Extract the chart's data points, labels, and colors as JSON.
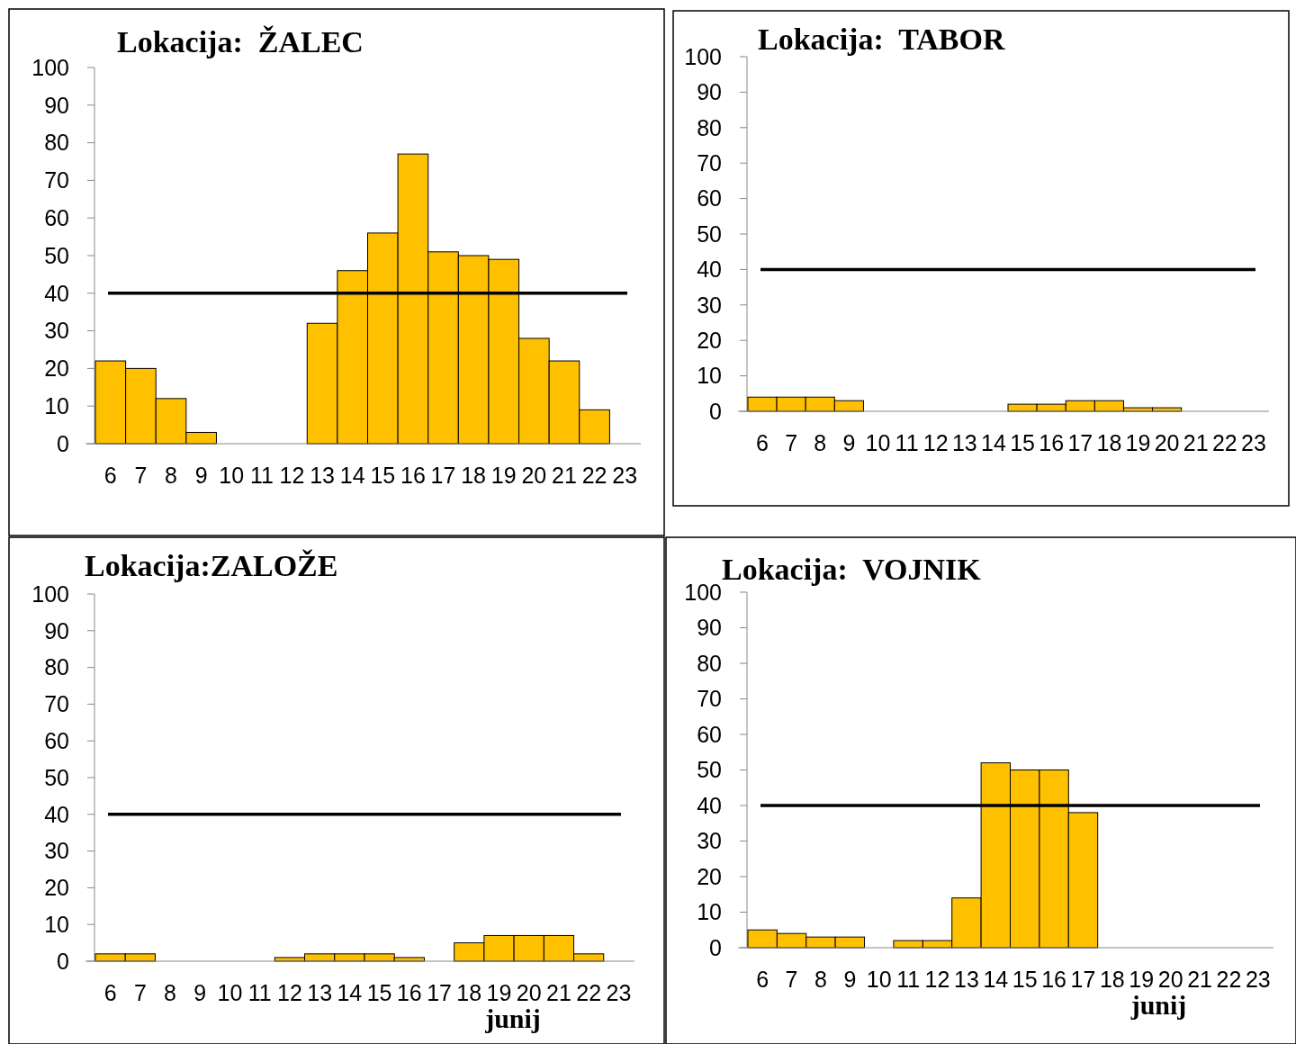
{
  "chart_data": [
    {
      "type": "bar",
      "title": "Lokacija:  ŽALEC",
      "categories": [
        "6",
        "7",
        "8",
        "9",
        "10",
        "11",
        "12",
        "13",
        "14",
        "15",
        "16",
        "17",
        "18",
        "19",
        "20",
        "21",
        "22",
        "23"
      ],
      "series": [
        {
          "color": "#ffc000",
          "values": [
            22,
            20,
            12,
            3,
            0,
            0,
            0,
            32,
            46,
            56,
            77,
            51,
            50,
            49,
            28,
            22,
            9,
            0
          ]
        }
      ],
      "ylim": [
        0,
        100
      ],
      "yticks": [
        0,
        10,
        20,
        30,
        40,
        50,
        60,
        70,
        80,
        90,
        100
      ],
      "ref_lines": [
        {
          "axis": "y",
          "value": 40,
          "color": "#000000"
        }
      ]
    },
    {
      "type": "bar",
      "title": "Lokacija:  TABOR",
      "categories": [
        "6",
        "7",
        "8",
        "9",
        "10",
        "11",
        "12",
        "13",
        "14",
        "15",
        "16",
        "17",
        "18",
        "19",
        "20",
        "21",
        "22",
        "23"
      ],
      "series": [
        {
          "color": "#ffc000",
          "values": [
            4,
            4,
            4,
            3,
            0,
            0,
            0,
            0,
            0,
            2,
            2,
            3,
            3,
            1,
            1,
            0,
            0,
            0
          ]
        }
      ],
      "ylim": [
        0,
        100
      ],
      "yticks": [
        0,
        10,
        20,
        30,
        40,
        50,
        60,
        70,
        80,
        90,
        100
      ],
      "ref_lines": [
        {
          "axis": "y",
          "value": 40,
          "color": "#000000"
        }
      ]
    },
    {
      "type": "bar",
      "title": "Lokacija:ZALOŽE",
      "xlabel": "junij",
      "categories": [
        "6",
        "7",
        "8",
        "9",
        "10",
        "11",
        "12",
        "13",
        "14",
        "15",
        "16",
        "17",
        "18",
        "19",
        "20",
        "21",
        "22",
        "23"
      ],
      "series": [
        {
          "color": "#ffc000",
          "values": [
            2,
            2,
            0,
            0,
            0,
            0,
            1,
            2,
            2,
            2,
            1,
            0,
            5,
            7,
            7,
            7,
            2,
            0
          ]
        }
      ],
      "ylim": [
        0,
        100
      ],
      "yticks": [
        0,
        10,
        20,
        30,
        40,
        50,
        60,
        70,
        80,
        90,
        100
      ],
      "ref_lines": [
        {
          "axis": "y",
          "value": 40,
          "color": "#000000"
        }
      ]
    },
    {
      "type": "bar",
      "title": "Lokacija:  VOJNIK",
      "xlabel": "junij",
      "categories": [
        "6",
        "7",
        "8",
        "9",
        "10",
        "11",
        "12",
        "13",
        "14",
        "15",
        "16",
        "17",
        "18",
        "19",
        "20",
        "21",
        "22",
        "23"
      ],
      "series": [
        {
          "color": "#ffc000",
          "values": [
            5,
            4,
            3,
            3,
            0,
            2,
            2,
            14,
            52,
            50,
            50,
            38,
            0,
            0,
            0,
            0,
            0,
            0
          ]
        }
      ],
      "ylim": [
        0,
        100
      ],
      "yticks": [
        0,
        10,
        20,
        30,
        40,
        50,
        60,
        70,
        80,
        90,
        100
      ],
      "ref_lines": [
        {
          "axis": "y",
          "value": 40,
          "color": "#000000"
        }
      ]
    }
  ]
}
